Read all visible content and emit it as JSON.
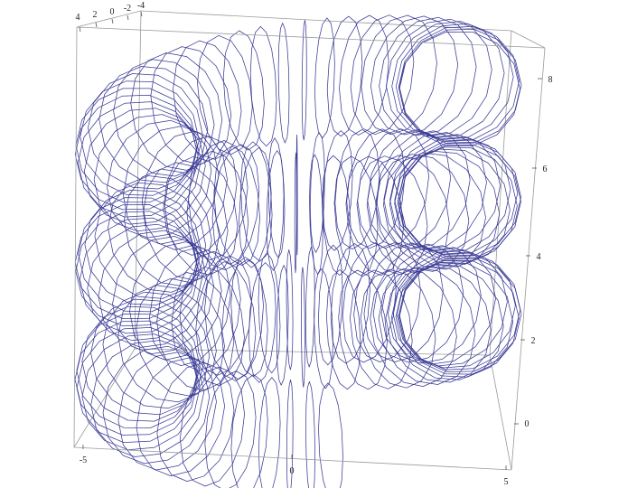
{
  "chart_data": {
    "type": "parametric-3d-tube",
    "title": "",
    "xlabel": "",
    "ylabel": "",
    "zlabel": "",
    "x_range": [
      -5.5,
      5.5
    ],
    "y_range": [
      -4.5,
      4.5
    ],
    "z_range": [
      -0.8,
      8.8
    ],
    "x_ticks": [
      "-5",
      "0",
      "5"
    ],
    "y_ticks": [
      "4",
      "2",
      "0",
      "-2",
      "-4"
    ],
    "z_ticks": [
      "0",
      "2",
      "4",
      "6",
      "8"
    ],
    "helix_radius": 4,
    "tube_radius": 1.5,
    "turns": 2.8,
    "z_start": 0.0,
    "z_end": 8.2,
    "ring_count": 140,
    "ring_segments": 14,
    "line_color": "#3a3a96",
    "box_color": "#9a9a9a",
    "grid": false,
    "legend": "none"
  }
}
